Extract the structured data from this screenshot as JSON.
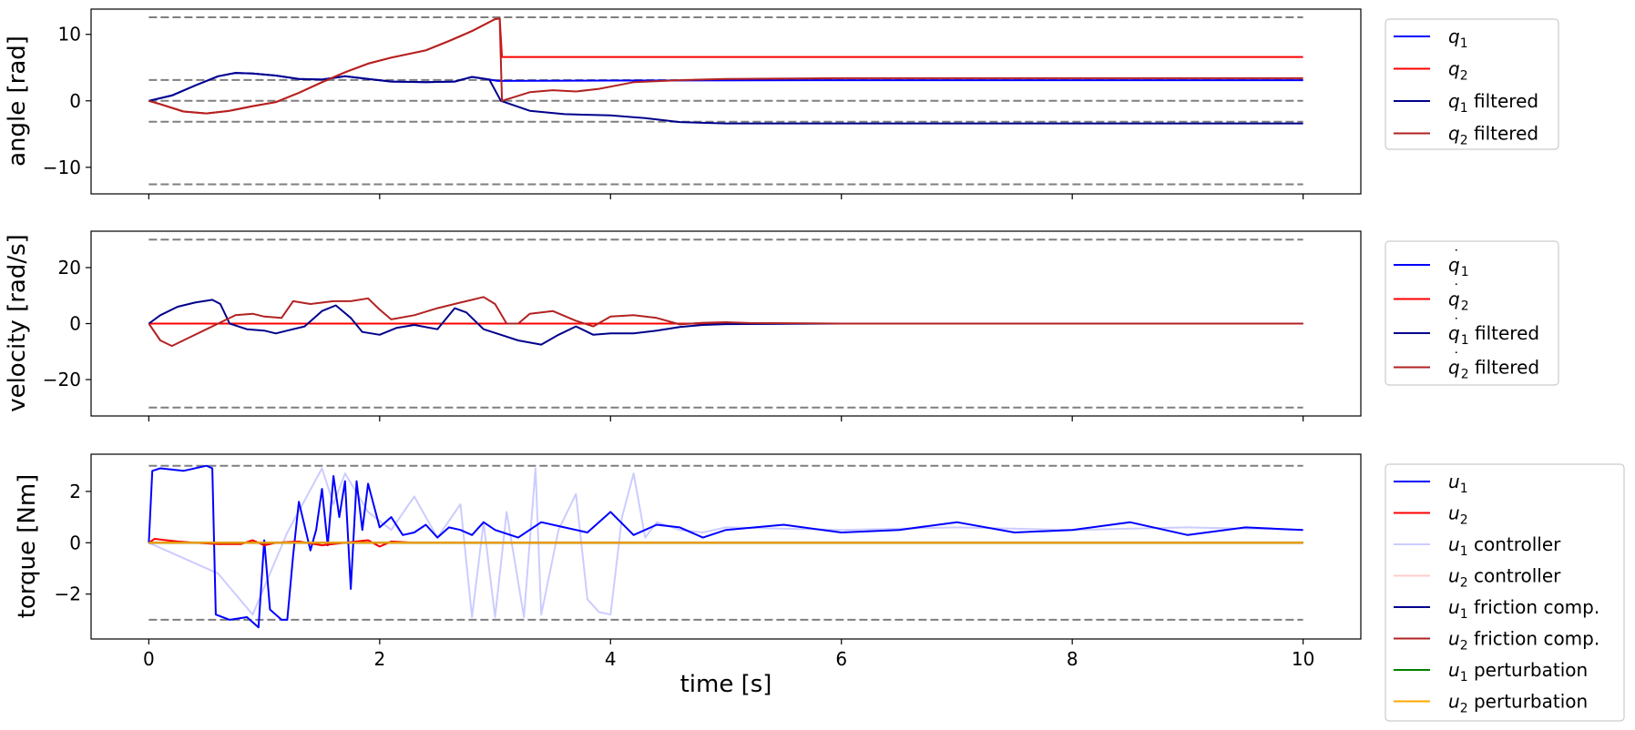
{
  "figure": {
    "xlabel": "time [s]"
  },
  "chart_data": [
    {
      "type": "line",
      "ylabel": "angle [rad]",
      "xlim": [
        -0.5,
        10.5
      ],
      "ylim": [
        -14,
        13.8
      ],
      "xticks": [
        0,
        2,
        4,
        6,
        8,
        10
      ],
      "xtick_labels": [
        "0",
        "2",
        "4",
        "6",
        "8",
        "10"
      ],
      "yticks": [
        10,
        0,
        -10
      ],
      "ytick_labels": [
        "10",
        "0",
        "−10"
      ],
      "reference_lines": [
        12.57,
        3.14,
        0,
        -3.14,
        -12.57
      ],
      "legend_position": "outside-right",
      "series": [
        {
          "name": "q1",
          "label_base": "q",
          "label_sub": "1",
          "label_suffix": "",
          "dot": false,
          "color": "#0000ff",
          "opacity": 1,
          "x": [
            0,
            0.2,
            0.4,
            0.6,
            0.75,
            0.9,
            1.1,
            1.3,
            1.5,
            1.7,
            1.9,
            2.1,
            2.4,
            2.65,
            2.8,
            2.95,
            3.02,
            4,
            6,
            10
          ],
          "y": [
            0,
            0.8,
            2.3,
            3.7,
            4.2,
            4.1,
            3.8,
            3.3,
            3.2,
            3.7,
            3.3,
            2.9,
            2.8,
            2.9,
            3.6,
            3.2,
            3.0,
            3.05,
            3.1,
            3.1
          ]
        },
        {
          "name": "q2",
          "label_base": "q",
          "label_sub": "2",
          "label_suffix": "",
          "dot": false,
          "color": "#ff0000",
          "opacity": 1,
          "x": [
            0,
            0.1,
            0.3,
            0.5,
            0.7,
            0.9,
            1.1,
            1.3,
            1.5,
            1.7,
            1.9,
            2.1,
            2.4,
            2.6,
            2.8,
            3.0,
            3.04,
            3.06,
            4,
            6,
            10
          ],
          "y": [
            0,
            -0.5,
            -1.6,
            -1.9,
            -1.5,
            -0.8,
            -0.2,
            1.2,
            2.8,
            4.3,
            5.6,
            6.5,
            7.6,
            9.0,
            10.5,
            12.3,
            12.4,
            6.6,
            6.6,
            6.6,
            6.6
          ]
        },
        {
          "name": "q1 filtered",
          "label_base": "q",
          "label_sub": "1",
          "label_suffix": " filtered",
          "dot": false,
          "color": "#00008b",
          "opacity": 1,
          "x": [
            0,
            0.2,
            0.4,
            0.6,
            0.75,
            0.9,
            1.1,
            1.3,
            1.5,
            1.7,
            1.9,
            2.1,
            2.4,
            2.65,
            2.8,
            2.95,
            3.05,
            3.3,
            3.6,
            4.0,
            4.3,
            4.6,
            5.0,
            6,
            10
          ],
          "y": [
            0,
            0.8,
            2.3,
            3.7,
            4.2,
            4.1,
            3.8,
            3.3,
            3.2,
            3.7,
            3.3,
            2.9,
            2.8,
            2.9,
            3.6,
            3.2,
            0.0,
            -1.5,
            -2.0,
            -2.2,
            -2.6,
            -3.2,
            -3.4,
            -3.4,
            -3.4
          ]
        },
        {
          "name": "q2 filtered",
          "label_base": "q",
          "label_sub": "2",
          "label_suffix": " filtered",
          "dot": false,
          "color": "#b22222",
          "opacity": 1,
          "x": [
            0,
            0.1,
            0.3,
            0.5,
            0.7,
            0.9,
            1.1,
            1.3,
            1.5,
            1.7,
            1.9,
            2.1,
            2.4,
            2.6,
            2.8,
            3.0,
            3.04,
            3.06,
            3.3,
            3.5,
            3.7,
            3.9,
            4.2,
            4.6,
            5.0,
            6,
            10
          ],
          "y": [
            0,
            -0.5,
            -1.6,
            -1.9,
            -1.5,
            -0.8,
            -0.2,
            1.2,
            2.8,
            4.3,
            5.6,
            6.5,
            7.6,
            9.0,
            10.5,
            12.3,
            12.4,
            0.0,
            1.3,
            1.6,
            1.4,
            1.8,
            2.8,
            3.1,
            3.3,
            3.4,
            3.4
          ]
        }
      ]
    },
    {
      "type": "line",
      "ylabel": "velocity [rad/s]",
      "xlim": [
        -0.5,
        10.5
      ],
      "ylim": [
        -33,
        33
      ],
      "xticks": [
        0,
        2,
        4,
        6,
        8,
        10
      ],
      "xtick_labels": [
        "0",
        "2",
        "4",
        "6",
        "8",
        "10"
      ],
      "yticks": [
        20,
        0,
        -20
      ],
      "ytick_labels": [
        "20",
        "0",
        "−20"
      ],
      "reference_lines": [
        30,
        0,
        -30
      ],
      "legend_position": "outside-right",
      "series": [
        {
          "name": "q1 dot",
          "label_base": "q",
          "label_sub": "1",
          "label_suffix": "",
          "dot": true,
          "color": "#0000ff",
          "opacity": 1,
          "x": [
            0,
            10
          ],
          "y": [
            0,
            0
          ]
        },
        {
          "name": "q2 dot",
          "label_base": "q",
          "label_sub": "2",
          "label_suffix": "",
          "dot": true,
          "color": "#ff0000",
          "opacity": 1,
          "x": [
            0,
            10
          ],
          "y": [
            0,
            0
          ]
        },
        {
          "name": "q1 dot filtered",
          "label_base": "q",
          "label_sub": "1",
          "label_suffix": " filtered",
          "dot": true,
          "color": "#00008b",
          "opacity": 1,
          "x": [
            0,
            0.1,
            0.25,
            0.4,
            0.55,
            0.62,
            0.7,
            0.85,
            1.0,
            1.1,
            1.2,
            1.35,
            1.5,
            1.62,
            1.75,
            1.85,
            2.0,
            2.15,
            2.3,
            2.5,
            2.65,
            2.75,
            2.9,
            3.05,
            3.2,
            3.4,
            3.55,
            3.7,
            3.85,
            4.0,
            4.2,
            4.4,
            4.6,
            4.8,
            5.0,
            6,
            10
          ],
          "y": [
            0,
            3,
            6,
            7.5,
            8.5,
            7,
            0,
            -2,
            -2.5,
            -3.5,
            -2.5,
            -1,
            4.5,
            6.5,
            2,
            -3,
            -4,
            -1.5,
            -0.5,
            -2,
            5.5,
            4,
            -2,
            -4,
            -6,
            -7.5,
            -4,
            -1,
            -4,
            -3.5,
            -3.5,
            -2.5,
            -1.2,
            -0.5,
            -0.2,
            0,
            0
          ]
        },
        {
          "name": "q2 dot filtered",
          "label_base": "q",
          "label_sub": "2",
          "label_suffix": " filtered",
          "dot": true,
          "color": "#b22222",
          "opacity": 1,
          "x": [
            0,
            0.1,
            0.2,
            0.35,
            0.5,
            0.6,
            0.75,
            0.9,
            1.0,
            1.15,
            1.25,
            1.4,
            1.6,
            1.75,
            1.9,
            2.0,
            2.1,
            2.3,
            2.5,
            2.7,
            2.9,
            3.0,
            3.1,
            3.2,
            3.3,
            3.5,
            3.7,
            3.85,
            4.0,
            4.2,
            4.4,
            4.6,
            4.8,
            5.0,
            5.2,
            6,
            10
          ],
          "y": [
            0,
            -6,
            -8,
            -5,
            -2,
            0,
            3,
            3.5,
            2.5,
            2,
            8,
            7,
            8,
            8,
            9,
            5,
            1.5,
            3,
            5.5,
            7.5,
            9.5,
            7,
            0,
            0,
            3.5,
            4.5,
            1,
            -1,
            2.5,
            3,
            2,
            -0.3,
            0.3,
            0.5,
            0.2,
            0,
            0
          ]
        }
      ]
    },
    {
      "type": "line",
      "ylabel": "torque [Nm]",
      "xlim": [
        -0.5,
        10.5
      ],
      "ylim": [
        -3.75,
        3.45
      ],
      "xticks": [
        0,
        2,
        4,
        6,
        8,
        10
      ],
      "xtick_labels": [
        "0",
        "2",
        "4",
        "6",
        "8",
        "10"
      ],
      "yticks": [
        2,
        0,
        -2
      ],
      "ytick_labels": [
        "2",
        "0",
        "−2"
      ],
      "reference_lines": [
        3,
        -3
      ],
      "legend_position": "outside-right",
      "series": [
        {
          "name": "u1",
          "label_base": "u",
          "label_sub": "1",
          "label_suffix": "",
          "dot": false,
          "color": "#0000ff",
          "opacity": 1,
          "x": [
            0,
            0.03,
            0.1,
            0.3,
            0.5,
            0.55,
            0.58,
            0.7,
            0.85,
            0.95,
            1.0,
            1.05,
            1.15,
            1.2,
            1.25,
            1.3,
            1.4,
            1.45,
            1.5,
            1.55,
            1.6,
            1.65,
            1.7,
            1.75,
            1.8,
            1.85,
            1.9,
            2.0,
            2.1,
            2.2,
            2.3,
            2.4,
            2.5,
            2.6,
            2.7,
            2.8,
            2.9,
            3.0,
            3.2,
            3.4,
            3.6,
            3.8,
            4.0,
            4.2,
            4.4,
            4.6,
            4.8,
            5.0,
            5.5,
            6,
            6.5,
            7,
            7.5,
            8,
            8.5,
            9,
            9.5,
            10
          ],
          "y": [
            0,
            2.8,
            2.9,
            2.8,
            3.0,
            2.9,
            -2.8,
            -3.0,
            -2.9,
            -3.3,
            0.1,
            -2.6,
            -3.0,
            -3.0,
            -0.5,
            1.6,
            -0.3,
            0.5,
            2.1,
            -0.1,
            2.6,
            1.0,
            2.4,
            -1.8,
            2.4,
            0.5,
            2.3,
            0.6,
            1.0,
            0.3,
            0.4,
            0.7,
            0.2,
            0.6,
            0.5,
            0.3,
            0.8,
            0.5,
            0.2,
            0.8,
            0.6,
            0.4,
            1.2,
            0.3,
            0.7,
            0.6,
            0.2,
            0.5,
            0.7,
            0.4,
            0.5,
            0.8,
            0.4,
            0.5,
            0.8,
            0.3,
            0.6,
            0.5
          ]
        },
        {
          "name": "u2",
          "label_base": "u",
          "label_sub": "2",
          "label_suffix": "",
          "dot": false,
          "color": "#ff0000",
          "opacity": 1,
          "x": [
            0,
            0.05,
            0.15,
            0.25,
            0.4,
            0.6,
            0.8,
            0.9,
            1.0,
            1.1,
            1.3,
            1.5,
            1.7,
            1.9,
            2.0,
            2.1,
            2.3,
            3,
            10
          ],
          "y": [
            0,
            0.15,
            0.1,
            0.05,
            0.0,
            -0.05,
            -0.05,
            0.1,
            -0.1,
            0.0,
            0.05,
            -0.1,
            0.0,
            0.1,
            -0.15,
            0.05,
            0.0,
            0,
            0
          ]
        },
        {
          "name": "u1 controller",
          "label_base": "u",
          "label_sub": "1",
          "label_suffix": " controller",
          "dot": false,
          "color": "#0000ff",
          "opacity": 0.2,
          "x": [
            0,
            0.6,
            0.9,
            1.2,
            1.5,
            1.6,
            1.7,
            1.9,
            2.1,
            2.3,
            2.5,
            2.7,
            2.8,
            2.9,
            3.0,
            3.1,
            3.25,
            3.35,
            3.4,
            3.55,
            3.7,
            3.8,
            3.9,
            4.0,
            4.1,
            4.2,
            4.3,
            4.4,
            4.6,
            4.8,
            5.0,
            6,
            7,
            8,
            9,
            10
          ],
          "y": [
            0,
            -1.2,
            -2.8,
            0.4,
            2.9,
            1.5,
            2.7,
            1.2,
            0.5,
            1.8,
            0.2,
            1.5,
            -2.9,
            0.8,
            -2.9,
            1.2,
            -2.9,
            2.9,
            -2.8,
            0.5,
            1.9,
            -2.2,
            -2.7,
            -2.8,
            1.0,
            2.7,
            0.2,
            0.8,
            0.5,
            0.4,
            0.6,
            0.5,
            0.6,
            0.5,
            0.6,
            0.5
          ]
        },
        {
          "name": "u2 controller",
          "label_base": "u",
          "label_sub": "2",
          "label_suffix": " controller",
          "dot": false,
          "color": "#ff0000",
          "opacity": 0.2,
          "x": [
            0,
            10
          ],
          "y": [
            0,
            0
          ]
        },
        {
          "name": "u1 friction comp.",
          "label_base": "u",
          "label_sub": "1",
          "label_suffix": " friction comp.",
          "dot": false,
          "color": "#00008b",
          "opacity": 1,
          "x": [
            0,
            10
          ],
          "y": [
            0,
            0
          ]
        },
        {
          "name": "u2 friction comp.",
          "label_base": "u",
          "label_sub": "2",
          "label_suffix": " friction comp.",
          "dot": false,
          "color": "#b22222",
          "opacity": 1,
          "x": [
            0,
            10
          ],
          "y": [
            0,
            0
          ]
        },
        {
          "name": "u1 perturbation",
          "label_base": "u",
          "label_sub": "1",
          "label_suffix": " perturbation",
          "dot": false,
          "color": "#008000",
          "opacity": 1,
          "x": [
            0,
            10
          ],
          "y": [
            0,
            0
          ]
        },
        {
          "name": "u2 perturbation",
          "label_base": "u",
          "label_sub": "2",
          "label_suffix": " perturbation",
          "dot": false,
          "color": "#ffa500",
          "opacity": 1,
          "x": [
            0,
            10
          ],
          "y": [
            0,
            0
          ]
        }
      ]
    }
  ]
}
